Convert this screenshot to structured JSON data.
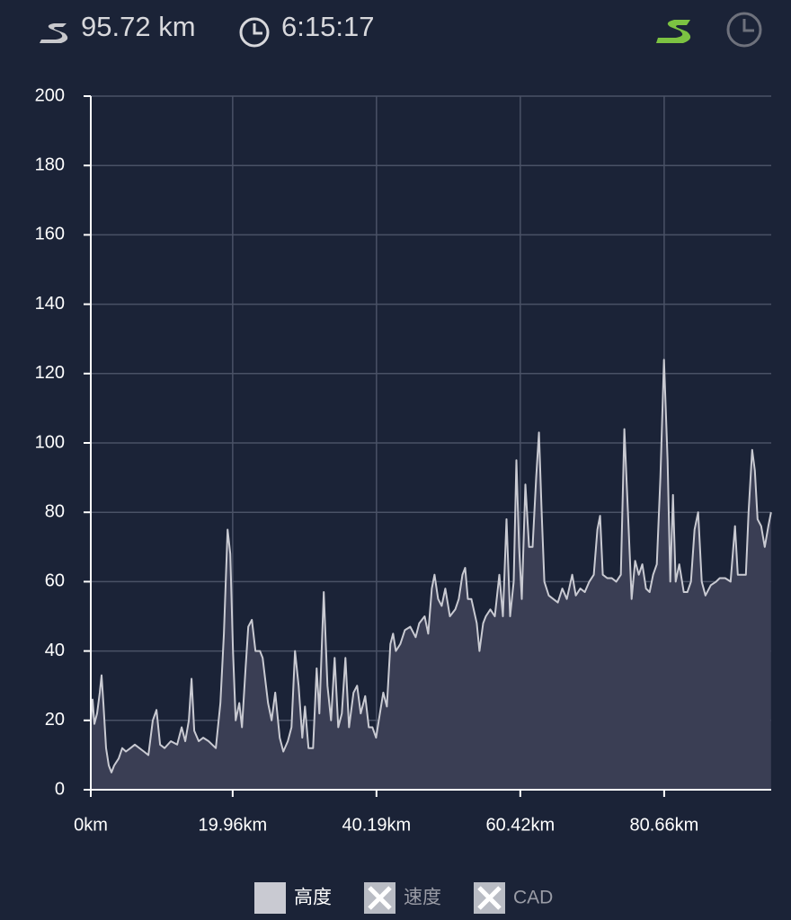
{
  "header": {
    "distance": "95.72 km",
    "duration": "6:15:17"
  },
  "chart_data": {
    "type": "area",
    "x": [
      0,
      0.25,
      0.51,
      0.89,
      1.27,
      1.52,
      1.77,
      2.15,
      2.53,
      2.91,
      3.29,
      3.92,
      4.43,
      4.94,
      5.57,
      6.2,
      6.84,
      7.47,
      8.1,
      8.73,
      9.24,
      9.75,
      10.38,
      11.27,
      12.15,
      12.78,
      13.29,
      13.8,
      14.18,
      14.56,
      15.19,
      15.82,
      16.58,
      17.59,
      18.23,
      18.73,
      19.24,
      19.62,
      20.0,
      20.38,
      20.89,
      21.27,
      21.77,
      22.15,
      22.66,
      23.16,
      23.8,
      24.18,
      24.94,
      25.44,
      25.95,
      26.58,
      27.09,
      27.72,
      28.23,
      28.73,
      29.24,
      29.75,
      30.13,
      30.63,
      31.27,
      31.77,
      32.15,
      32.78,
      33.29,
      33.8,
      34.3,
      34.81,
      35.32,
      35.82,
      36.33,
      36.96,
      37.47,
      37.97,
      38.61,
      39.11,
      39.62,
      40.13,
      40.51,
      41.14,
      41.65,
      42.15,
      42.53,
      42.91,
      43.54,
      44.18,
      44.94,
      45.7,
      46.2,
      46.96,
      47.47,
      47.97,
      48.35,
      48.86,
      49.37,
      49.87,
      50.51,
      51.27,
      51.77,
      52.28,
      52.66,
      53.04,
      53.54,
      54.3,
      54.68,
      55.19,
      55.57,
      56.2,
      56.84,
      57.47,
      57.97,
      58.48,
      58.99,
      59.49,
      59.87,
      60.25,
      60.63,
      61.14,
      61.65,
      62.15,
      62.66,
      63.04,
      63.42,
      63.8,
      64.43,
      65.06,
      65.7,
      66.33,
      66.96,
      67.72,
      68.23,
      68.86,
      69.49,
      70.13,
      70.76,
      71.27,
      71.65,
      72.03,
      72.66,
      73.29,
      73.92,
      74.56,
      75.06,
      75.57,
      76.08,
      76.58,
      77.09,
      77.59,
      78.1,
      78.61,
      79.11,
      79.62,
      80.13,
      80.63,
      81.14,
      81.52,
      81.9,
      82.28,
      82.78,
      83.42,
      83.92,
      84.43,
      84.94,
      85.44,
      85.95,
      86.46,
      87.22,
      87.97,
      88.48,
      89.24,
      90.0,
      90.63,
      91.01,
      91.65,
      92.15,
      92.53,
      93.04,
      93.42,
      93.8,
      94.3,
      94.81,
      95.32,
      95.7
    ],
    "series": [
      {
        "name": "高度",
        "color": "#c9cad2",
        "fill": "#3a3e54",
        "values": [
          20,
          26,
          19,
          22,
          28,
          33,
          25,
          12,
          7,
          5,
          7,
          9,
          12,
          11,
          12,
          13,
          12,
          11,
          10,
          20,
          23,
          13,
          12,
          14,
          13,
          18,
          14,
          20,
          32,
          17,
          14,
          15,
          14,
          12,
          25,
          45,
          75,
          68,
          40,
          20,
          25,
          18,
          35,
          47,
          49,
          40,
          40,
          38,
          25,
          20,
          28,
          15,
          11,
          14,
          18,
          40,
          30,
          15,
          24,
          12,
          12,
          35,
          22,
          57,
          30,
          20,
          38,
          18,
          22,
          38,
          18,
          28,
          30,
          22,
          27,
          18,
          18,
          15,
          20,
          28,
          24,
          42,
          45,
          40,
          42,
          46,
          47,
          44,
          48,
          50,
          45,
          58,
          62,
          55,
          53,
          58,
          50,
          52,
          55,
          62,
          64,
          55,
          55,
          48,
          40,
          48,
          50,
          52,
          50,
          62,
          50,
          78,
          50,
          60,
          95,
          70,
          55,
          88,
          70,
          70,
          90,
          103,
          80,
          60,
          56,
          55,
          54,
          58,
          55,
          62,
          56,
          58,
          57,
          60,
          62,
          75,
          79,
          62,
          61,
          61,
          60,
          62,
          104,
          80,
          55,
          66,
          62,
          65,
          58,
          57,
          62,
          65,
          90,
          124,
          95,
          60,
          85,
          60,
          65,
          57,
          57,
          60,
          75,
          80,
          60,
          56,
          59,
          60,
          61,
          61,
          60,
          76,
          62,
          62,
          62,
          80,
          98,
          92,
          78,
          76,
          70,
          76,
          80
        ]
      }
    ],
    "disabled_series": [
      {
        "name": "速度"
      },
      {
        "name": "CAD"
      }
    ],
    "xlim": [
      0,
      95.72
    ],
    "ylim": [
      0,
      200
    ],
    "xticks": [
      {
        "value": 0,
        "label": "0km"
      },
      {
        "value": 19.96,
        "label": "19.96km"
      },
      {
        "value": 40.19,
        "label": "40.19km"
      },
      {
        "value": 60.42,
        "label": "60.42km"
      },
      {
        "value": 80.66,
        "label": "80.66km"
      }
    ],
    "yticks": [
      0,
      20,
      40,
      60,
      80,
      100,
      120,
      140,
      160,
      180,
      200
    ],
    "grid": true
  }
}
